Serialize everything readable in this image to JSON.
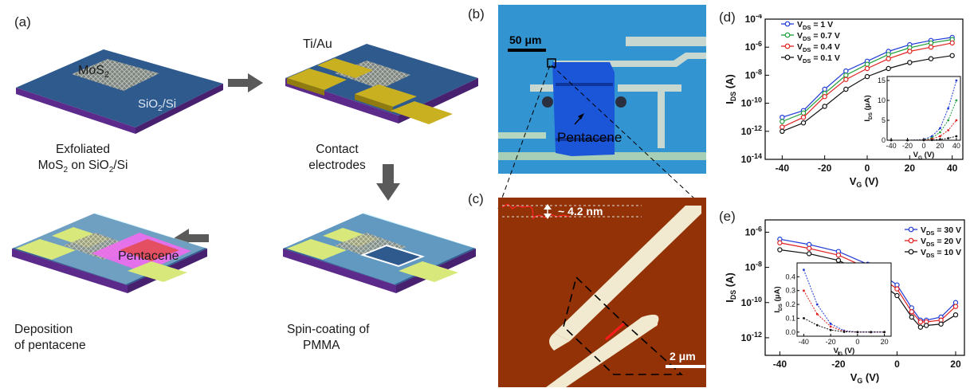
{
  "panel_a": {
    "label": "(a)",
    "step1": {
      "chip_label": "MoS",
      "chip_sub": "2",
      "substrate_label": "SiO",
      "substrate_sub": "2",
      "substrate_suffix": "/Si",
      "caption_line1": "Exfoliated",
      "caption_line2_pre": "MoS",
      "caption_line2_sub": "2",
      "caption_line2_post": " on SiO",
      "caption_line2_sub2": "2",
      "caption_line2_end": "/Si"
    },
    "step2": {
      "electrode_label": "Ti/Au",
      "caption_line1": "Contact",
      "caption_line2": "electrodes"
    },
    "step3": {
      "caption_line1": "Spin-coating of",
      "caption_line2": "PMMA"
    },
    "step4": {
      "layer_label": "Pentacene",
      "caption_line1": "Deposition",
      "caption_line2": "of pentacene"
    }
  },
  "panel_b": {
    "label": "(b)",
    "scale_bar": "50 μm",
    "material_label": "Pentacene"
  },
  "panel_c": {
    "label": "(c)",
    "height_label": "~ 4.2 nm",
    "scale_bar": "2 μm"
  },
  "colors": {
    "substrate_blue": "#2f5a8e",
    "substrate_purple": "#5b2a8a",
    "gold": "#c9b020",
    "pentacene_pink": "#f06cf0",
    "afm_brown": "#8a2e05",
    "optical_blue": "#2a8fd0"
  },
  "chart_data": [
    {
      "panel": "(d)",
      "type": "line",
      "xlabel": "V",
      "xlabel_sub": "G",
      "xlabel_unit": " (V)",
      "ylabel": "I",
      "ylabel_sub": "DS",
      "ylabel_unit": " (A)",
      "yscale": "log",
      "xlim": [
        -48,
        45
      ],
      "ylim": [
        1e-14,
        0.0001
      ],
      "xticks": [
        "-40",
        "-20",
        "0",
        "20",
        "40"
      ],
      "yticks": [
        "10",
        "10",
        "10",
        "10",
        "10",
        "10"
      ],
      "ytick_exp": [
        "-14",
        "-12",
        "-10",
        "-8",
        "-6",
        "-4"
      ],
      "x": [
        -40,
        -30,
        -20,
        -10,
        0,
        10,
        20,
        30,
        40
      ],
      "series": [
        {
          "name": "V_DS = 1 V",
          "legend_main": "V",
          "legend_sub": "DS",
          "legend_val": " = 1 V",
          "color": "#1f3bd6",
          "values": [
            1e-11,
            3e-11,
            1e-09,
            2e-08,
            1e-07,
            5e-07,
            1.5e-06,
            3e-06,
            5e-06
          ]
        },
        {
          "name": "V_DS = 0.7 V",
          "legend_main": "V",
          "legend_sub": "DS",
          "legend_val": " = 0.7 V",
          "color": "#1e9e3a",
          "values": [
            5e-12,
            2e-11,
            5e-10,
            1e-08,
            6e-08,
            3e-07,
            9e-07,
            2e-06,
            3.5e-06
          ]
        },
        {
          "name": "V_DS = 0.4 V",
          "legend_main": "V",
          "legend_sub": "DS",
          "legend_val": " = 0.4 V",
          "color": "#e0201f",
          "values": [
            2e-12,
            1e-11,
            3e-10,
            5e-09,
            3e-08,
            1.5e-07,
            5e-07,
            1e-06,
            2e-06
          ]
        },
        {
          "name": "V_DS = 0.1 V",
          "legend_main": "V",
          "legend_sub": "DS",
          "legend_val": " = 0.1 V",
          "color": "#111111",
          "values": [
            1e-12,
            4e-12,
            6e-11,
            1e-09,
            8e-09,
            3e-08,
            8e-08,
            1.5e-07,
            2.5e-07
          ]
        }
      ],
      "inset": {
        "xlabel": "V",
        "xlabel_sub": "G",
        "xlabel_unit": " (V)",
        "ylabel": "I",
        "ylabel_sub": "DS",
        "ylabel_unit": " (μA)",
        "xlim": [
          -45,
          45
        ],
        "ylim": [
          0,
          16
        ],
        "xticks": [
          "-40",
          "-20",
          "0",
          "20",
          "40"
        ],
        "yticks": [
          "0",
          "5",
          "10",
          "15"
        ],
        "x": [
          -40,
          -20,
          0,
          10,
          20,
          30,
          40
        ],
        "series_values": [
          [
            0,
            0,
            0.2,
            1,
            3,
            8,
            15
          ],
          [
            0,
            0,
            0.1,
            0.6,
            2,
            5,
            10
          ],
          [
            0,
            0,
            0.05,
            0.3,
            1,
            2.5,
            5
          ],
          [
            0,
            0,
            0,
            0.05,
            0.2,
            0.5,
            1
          ]
        ]
      }
    },
    {
      "panel": "(e)",
      "type": "line",
      "xlabel": "V",
      "xlabel_sub": "G",
      "xlabel_unit": " (V)",
      "ylabel": "I",
      "ylabel_sub": "DS",
      "ylabel_unit": " (A)",
      "yscale": "log",
      "xlim": [
        -45,
        23
      ],
      "ylim": [
        1e-13,
        5e-06
      ],
      "xticks": [
        "-40",
        "-20",
        "0",
        "20"
      ],
      "yticks": [
        "10",
        "10",
        "10",
        "10"
      ],
      "ytick_exp": [
        "-12",
        "-10",
        "-8",
        "-6"
      ],
      "x": [
        -40,
        -30,
        -20,
        -10,
        0,
        5,
        8,
        10,
        15,
        20
      ],
      "series": [
        {
          "name": "V_DS = 30 V",
          "legend_main": "V",
          "legend_sub": "DS",
          "legend_val": " = 30 V",
          "color": "#1f3bd6",
          "values": [
            4e-07,
            2e-07,
            8e-08,
            1.5e-08,
            1e-09,
            5e-11,
            1e-11,
            1e-11,
            1.5e-11,
            1e-10
          ]
        },
        {
          "name": "V_DS = 20 V",
          "legend_main": "V",
          "legend_sub": "DS",
          "legend_val": " = 20 V",
          "color": "#e0201f",
          "values": [
            2.5e-07,
            1.2e-07,
            5e-08,
            9e-09,
            6e-10,
            3e-11,
            8e-12,
            8e-12,
            1e-11,
            6e-11
          ]
        },
        {
          "name": "V_DS = 10 V",
          "legend_main": "V",
          "legend_sub": "DS",
          "legend_val": " = 10 V",
          "color": "#111111",
          "values": [
            1e-07,
            6e-08,
            2.5e-08,
            4e-09,
            2.5e-10,
            1.5e-11,
            4e-12,
            5e-12,
            6e-12,
            2e-11
          ]
        }
      ],
      "inset": {
        "xlabel": "V",
        "xlabel_sub": "G",
        "xlabel_unit": " (V)",
        "ylabel": "I",
        "ylabel_sub": "DS",
        "ylabel_unit": " (μA)",
        "xlim": [
          -45,
          25
        ],
        "ylim": [
          -0.03,
          0.5
        ],
        "xticks": [
          "-40",
          "-20",
          "0",
          "20"
        ],
        "yticks": [
          "0.0",
          "0.1",
          "0.2",
          "0.3",
          "0.4"
        ],
        "x": [
          -40,
          -30,
          -20,
          -10,
          0,
          10,
          20
        ],
        "series_values": [
          [
            0.45,
            0.2,
            0.06,
            0.01,
            0,
            0,
            0
          ],
          [
            0.3,
            0.13,
            0.04,
            0.005,
            0,
            0,
            0
          ],
          [
            0.1,
            0.05,
            0.015,
            0.002,
            0,
            0,
            0
          ]
        ]
      }
    }
  ]
}
